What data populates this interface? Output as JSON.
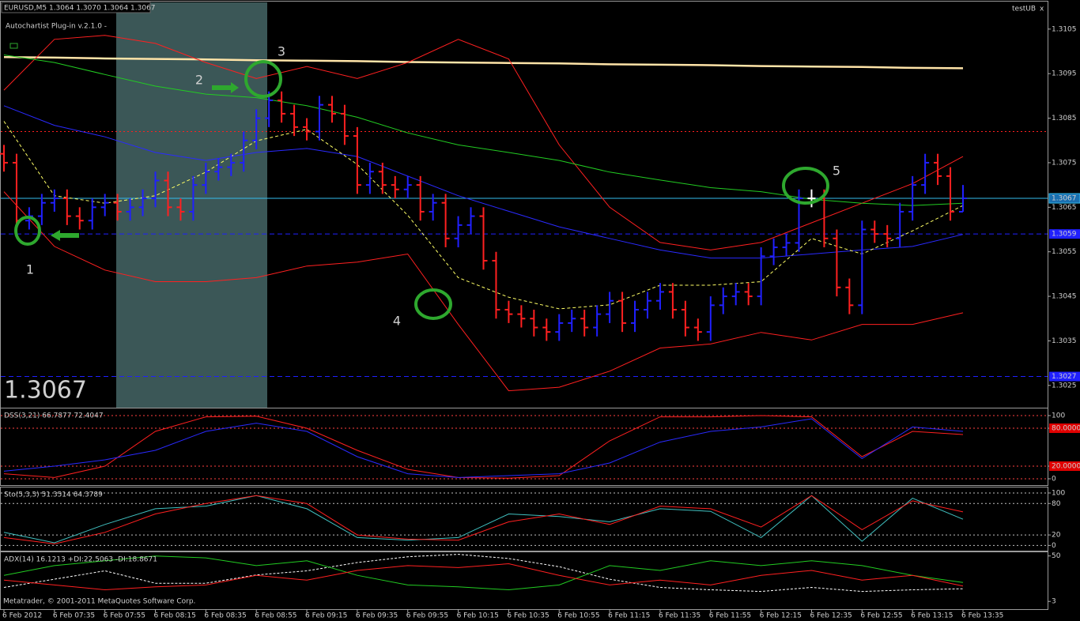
{
  "window_label": "testUB",
  "close_symbol": "x",
  "footer": "Metatrader, © 2001-2011 MetaQuotes Software Corp.",
  "chart_data": [
    {
      "type": "ohlc",
      "title": "EURUSD,M5  1.3064 1.3070 1.3064 1.3067",
      "subtitle": "Autochartist Plug-in v.2.1.0 -",
      "categories": [
        "6 Feb 2012",
        null,
        null,
        null,
        "6 Feb 07:35",
        null,
        null,
        null,
        "6 Feb 07:55",
        null,
        null,
        null,
        "6 Feb 08:15",
        null,
        null,
        null,
        "6 Feb 08:35",
        null,
        null,
        null,
        "6 Feb 08:55",
        null,
        null,
        null,
        "6 Feb 09:15",
        null,
        null,
        null,
        "6 Feb 09:35",
        null,
        null,
        null,
        "6 Feb 09:55",
        null,
        null,
        null,
        "6 Feb 10:15",
        null,
        null,
        null,
        "6 Feb 10:35",
        null,
        null,
        null,
        "6 Feb 10:55",
        null,
        null,
        null,
        "6 Feb 11:15",
        null,
        null,
        null,
        "6 Feb 11:35",
        null,
        null,
        null,
        "6 Feb 11:55",
        null,
        null,
        null,
        "6 Feb 12:15",
        null,
        null,
        null,
        "6 Feb 12:35",
        null,
        null,
        null,
        "6 Feb 12:55",
        null,
        null,
        null,
        "6 Feb 13:15",
        null,
        null,
        null,
        "6 Feb 13:35"
      ],
      "open": [
        1.3077,
        1.3075,
        1.3062,
        1.3063,
        1.3066,
        1.3067,
        1.3063,
        1.3062,
        1.3065,
        1.3066,
        1.3064,
        1.3065,
        1.3067,
        1.3071,
        1.3065,
        1.3064,
        1.307,
        1.3073,
        1.3074,
        1.3075,
        1.308,
        1.3085,
        1.3089,
        1.3086,
        1.3083,
        1.3082,
        1.3088,
        1.3086,
        1.3081,
        1.307,
        1.3073,
        1.307,
        1.3069,
        1.307,
        1.3064,
        1.3066,
        1.3058,
        1.3061,
        1.3063,
        1.3053,
        1.3042,
        1.3041,
        1.304,
        1.3038,
        1.3037,
        1.3039,
        1.304,
        1.3038,
        1.3041,
        1.3044,
        1.3039,
        1.3042,
        1.3044,
        1.3046,
        1.3042,
        1.3038,
        1.3037,
        1.3043,
        1.3045,
        1.3046,
        1.3045,
        1.3054,
        1.3056,
        1.3057,
        1.3067,
        1.3067,
        1.3058,
        1.3047,
        1.3043,
        1.306,
        1.3059,
        1.3058,
        1.3064,
        1.307,
        1.3075,
        1.3072,
        1.3064
      ],
      "high": [
        1.3079,
        1.3077,
        1.3065,
        1.3068,
        1.3069,
        1.3069,
        1.3065,
        1.3067,
        1.3068,
        1.3068,
        1.3067,
        1.3069,
        1.3073,
        1.3073,
        1.3067,
        1.3072,
        1.3075,
        1.3076,
        1.3077,
        1.3082,
        1.3087,
        1.3091,
        1.3091,
        1.3088,
        1.3085,
        1.309,
        1.309,
        1.3088,
        1.3083,
        1.3075,
        1.3075,
        1.3072,
        1.3072,
        1.3072,
        1.3068,
        1.3068,
        1.3063,
        1.3065,
        1.3065,
        1.3055,
        1.3044,
        1.3043,
        1.3042,
        1.304,
        1.3041,
        1.3042,
        1.3042,
        1.3043,
        1.3046,
        1.3046,
        1.3044,
        1.3046,
        1.3048,
        1.3048,
        1.3044,
        1.304,
        1.3045,
        1.3047,
        1.3048,
        1.3048,
        1.3056,
        1.3058,
        1.3059,
        1.3069,
        1.3069,
        1.3069,
        1.306,
        1.3049,
        1.3062,
        1.3062,
        1.3061,
        1.3066,
        1.3072,
        1.3077,
        1.3077,
        1.3074,
        1.307
      ],
      "low": [
        1.3073,
        1.306,
        1.306,
        1.3061,
        1.3064,
        1.3061,
        1.306,
        1.306,
        1.3063,
        1.3062,
        1.3062,
        1.3063,
        1.3065,
        1.3063,
        1.3062,
        1.3062,
        1.3068,
        1.3071,
        1.3072,
        1.3073,
        1.3078,
        1.3083,
        1.3084,
        1.3081,
        1.308,
        1.308,
        1.3084,
        1.3079,
        1.3068,
        1.3068,
        1.3068,
        1.3067,
        1.3067,
        1.3062,
        1.3062,
        1.3056,
        1.3056,
        1.3059,
        1.3051,
        1.304,
        1.3039,
        1.3038,
        1.3036,
        1.3035,
        1.3035,
        1.3037,
        1.3036,
        1.3036,
        1.3039,
        1.3037,
        1.3037,
        1.304,
        1.3042,
        1.304,
        1.3036,
        1.3035,
        1.3035,
        1.3041,
        1.3043,
        1.3043,
        1.3043,
        1.3052,
        1.3054,
        1.3055,
        1.3065,
        1.3056,
        1.3045,
        1.3041,
        1.3041,
        1.3057,
        1.3056,
        1.3056,
        1.3062,
        1.3068,
        1.307,
        1.3062,
        1.3064
      ],
      "close": [
        1.3075,
        1.3062,
        1.3063,
        1.3066,
        1.3067,
        1.3063,
        1.3062,
        1.3065,
        1.3066,
        1.3064,
        1.3065,
        1.3067,
        1.3071,
        1.3065,
        1.3064,
        1.307,
        1.3073,
        1.3074,
        1.3075,
        1.308,
        1.3085,
        1.3089,
        1.3086,
        1.3083,
        1.3082,
        1.3088,
        1.3086,
        1.3081,
        1.307,
        1.3073,
        1.307,
        1.3069,
        1.307,
        1.3064,
        1.3066,
        1.3058,
        1.3061,
        1.3063,
        1.3053,
        1.3042,
        1.3041,
        1.304,
        1.3038,
        1.3037,
        1.3039,
        1.304,
        1.3038,
        1.3041,
        1.3044,
        1.3039,
        1.3042,
        1.3044,
        1.3046,
        1.3042,
        1.3038,
        1.3037,
        1.3043,
        1.3045,
        1.3046,
        1.3045,
        1.3054,
        1.3056,
        1.3057,
        1.3067,
        1.3067,
        1.3058,
        1.3047,
        1.3043,
        1.306,
        1.3059,
        1.3058,
        1.3064,
        1.307,
        1.3075,
        1.3072,
        1.3064,
        1.3067
      ],
      "up_color": "#2020ff",
      "down_color": "#ff2020",
      "flat_color": "#ffffff",
      "overlays": [
        {
          "color": "#ffe4a8",
          "width": 2.5,
          "dash": false,
          "values": [
            1.30987,
            1.30986,
            1.30984,
            1.30983,
            1.30982,
            1.3098,
            1.30979,
            1.30978,
            1.30976,
            1.30975,
            1.30974,
            1.30973,
            1.30971,
            1.3097,
            1.30969,
            1.30967,
            1.30966,
            1.30965,
            1.30963,
            1.30962
          ]
        },
        {
          "color": "#ff2020",
          "width": 1,
          "dash": false,
          "values": [
            1.30913,
            1.31027,
            1.31036,
            1.31018,
            1.30975,
            1.30939,
            1.30966,
            1.30939,
            1.30975,
            1.31027,
            1.30983,
            1.3079,
            1.3065,
            1.30571,
            1.30554,
            1.30571,
            1.30615,
            1.30659,
            1.30703,
            1.30764
          ]
        },
        {
          "color": "#ff2020",
          "width": 1,
          "dash": false,
          "values": [
            1.30685,
            1.30562,
            1.30509,
            1.30483,
            1.30483,
            1.30492,
            1.30518,
            1.30527,
            1.30545,
            1.30387,
            1.30238,
            1.30246,
            1.30282,
            1.30334,
            1.30343,
            1.30369,
            1.30352,
            1.30387,
            1.30387,
            1.30413
          ]
        },
        {
          "color": "#22cc22",
          "width": 1,
          "dash": false,
          "values": [
            1.30992,
            1.30975,
            1.30948,
            1.30922,
            1.30904,
            1.30896,
            1.30878,
            1.30852,
            1.30817,
            1.3079,
            1.30773,
            1.30755,
            1.30729,
            1.30711,
            1.30694,
            1.30685,
            1.30668,
            1.30659,
            1.30654,
            1.30659
          ]
        },
        {
          "color": "#2a2aff",
          "width": 1,
          "dash": false,
          "values": [
            1.30878,
            1.30834,
            1.30808,
            1.30773,
            1.30755,
            1.30773,
            1.30782,
            1.30764,
            1.3072,
            1.30676,
            1.30641,
            1.30606,
            1.3058,
            1.30554,
            1.30536,
            1.30536,
            1.30545,
            1.30554,
            1.30562,
            1.30589
          ]
        },
        {
          "color": "#ffff66",
          "width": 1,
          "dash": true,
          "values": [
            1.30843,
            1.30676,
            1.30659,
            1.30676,
            1.30729,
            1.30799,
            1.30825,
            1.30746,
            1.30632,
            1.30492,
            1.30448,
            1.30422,
            1.30431,
            1.30475,
            1.30475,
            1.30483,
            1.3058,
            1.30545,
            1.30597,
            1.30654
          ]
        }
      ],
      "resistance": 1.3082,
      "resistance_color": "#ff2020",
      "levels": [
        1.3059,
        1.3027
      ],
      "level_color": "#2020ff",
      "last_price": 1.3067,
      "last_color": "#33bbee",
      "ylim": [
        1.302,
        1.3111
      ],
      "yticks": [
        1.3025,
        1.3035,
        1.3045,
        1.3055,
        1.3065,
        1.3075,
        1.3085,
        1.3095,
        1.3105
      ],
      "annotations": [
        "1",
        "2",
        "3",
        "4",
        "5"
      ],
      "annotation_color": "#2ea82e"
    },
    {
      "type": "line",
      "title": "DSS(3,21) 66.7877 72.4047",
      "ylim": [
        -10,
        110
      ],
      "yticks": [
        0,
        {
          "value": 20,
          "label": "20.0000"
        },
        {
          "value": 80,
          "label": "80.0000"
        },
        100
      ],
      "grid_color": "#ff4040",
      "series": [
        {
          "color": "#ff2020",
          "dash": false,
          "values": [
            8,
            2,
            20,
            75,
            98,
            99,
            80,
            45,
            15,
            2,
            1,
            5,
            60,
            98,
            98,
            100,
            98,
            35,
            75,
            70
          ]
        },
        {
          "color": "#2a2aff",
          "dash": false,
          "values": [
            12,
            20,
            30,
            45,
            75,
            88,
            75,
            35,
            8,
            2,
            5,
            8,
            25,
            58,
            75,
            82,
            95,
            32,
            82,
            75
          ]
        }
      ]
    },
    {
      "type": "line",
      "title": "Sto(5,3,3) 51.3514 64.3789",
      "ylim": [
        -10,
        109
      ],
      "yticks": [
        0,
        20,
        80,
        100
      ],
      "grid_color": "#c0c0c0",
      "series": [
        {
          "color": "#40c0c0",
          "dash": false,
          "values": [
            25,
            5,
            40,
            70,
            75,
            95,
            70,
            15,
            10,
            15,
            60,
            55,
            45,
            70,
            65,
            15,
            95,
            8,
            90,
            50
          ]
        },
        {
          "color": "#ff2020",
          "dash": false,
          "values": [
            15,
            3,
            25,
            60,
            80,
            95,
            80,
            20,
            12,
            10,
            45,
            60,
            40,
            75,
            70,
            35,
            95,
            30,
            85,
            64
          ]
        }
      ]
    },
    {
      "type": "line",
      "title": "ADX(14) 16.1213 +DI:22.5063 -DI:18.8671",
      "ylim": [
        -5,
        53
      ],
      "yticks": [
        3,
        50
      ],
      "grid_color": null,
      "series": [
        {
          "color": "#ffffff",
          "dash": true,
          "values": [
            17.5,
            26,
            34.6,
            21.8,
            21.8,
            30.4,
            34.6,
            43.2,
            49.2,
            51.7,
            47.4,
            38.9,
            26,
            17.5,
            15,
            13.3,
            17.5,
            13.3,
            15,
            16.1
          ]
        },
        {
          "color": "#22cc22",
          "dash": false,
          "values": [
            30,
            40,
            45,
            50,
            48,
            40,
            45,
            30,
            20,
            18,
            15,
            20,
            40,
            35,
            45,
            40,
            45,
            40,
            30,
            22.5
          ]
        },
        {
          "color": "#ff2020",
          "dash": false,
          "values": [
            25,
            20,
            15,
            18,
            20,
            30,
            25,
            35,
            40,
            38,
            42,
            30,
            20,
            25,
            20,
            30,
            35,
            25,
            30,
            18.9
          ]
        }
      ]
    }
  ]
}
